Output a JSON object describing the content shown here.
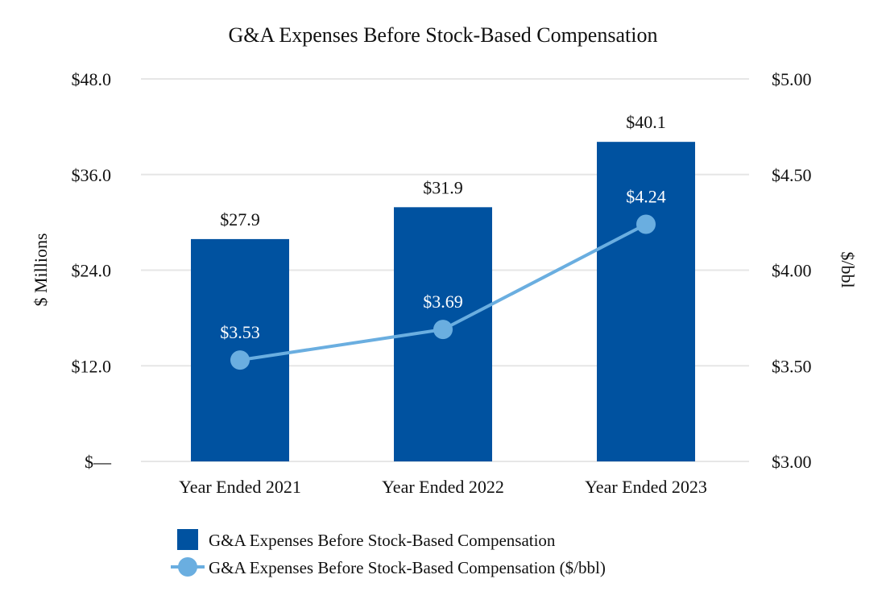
{
  "chart_data": {
    "type": "bar",
    "title": "G&A Expenses Before Stock-Based Compensation",
    "categories": [
      "Year Ended 2021",
      "Year Ended 2022",
      "Year Ended 2023"
    ],
    "series": [
      {
        "name": "G&A Expenses Before Stock-Based Compensation",
        "type": "bar",
        "axis": "left",
        "color": "#0052a0",
        "values": [
          27.9,
          31.9,
          40.1
        ],
        "labels": [
          "$27.9",
          "$31.9",
          "$40.1"
        ]
      },
      {
        "name": "G&A Expenses Before Stock-Based Compensation ($/bbl)",
        "type": "line",
        "axis": "right",
        "color": "#6aaee0",
        "values": [
          3.53,
          3.69,
          4.24
        ],
        "labels": [
          "$3.53",
          "$3.69",
          "$4.24"
        ]
      }
    ],
    "y_left": {
      "label": "$ Millions",
      "range": [
        0,
        48
      ],
      "ticks": [
        0,
        12,
        24,
        36,
        48
      ],
      "tick_labels": [
        "$—",
        "$12.0",
        "$24.0",
        "$36.0",
        "$48.0"
      ]
    },
    "y_right": {
      "label": "$/bbl",
      "range": [
        3.0,
        5.0
      ],
      "ticks": [
        3.0,
        3.5,
        4.0,
        4.5,
        5.0
      ],
      "tick_labels": [
        "$3.00",
        "$3.50",
        "$4.00",
        "$4.50",
        "$5.00"
      ]
    },
    "grid": true,
    "gridline_color": "#e6e6e6",
    "legend_position": "bottom"
  }
}
